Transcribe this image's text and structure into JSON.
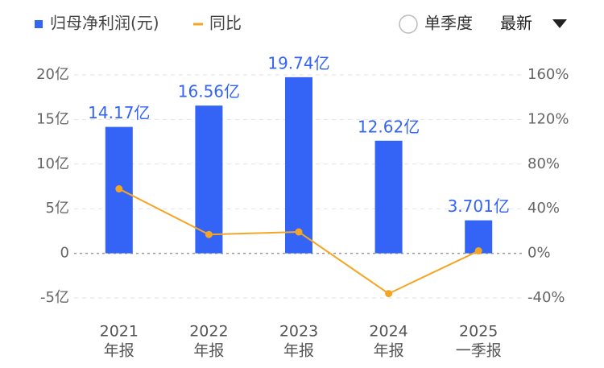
{
  "chart_data": {
    "type": "bar",
    "categories": [
      [
        "2021",
        "年报"
      ],
      [
        "2022",
        "年报"
      ],
      [
        "2023",
        "年报"
      ],
      [
        "2024",
        "年报"
      ],
      [
        "2025",
        "一季报"
      ]
    ],
    "series": [
      {
        "name": "归母净利润(元)",
        "color": "#3464f5",
        "type": "bar",
        "values": [
          14.17,
          16.56,
          19.74,
          12.62,
          3.701
        ],
        "value_labels": [
          "14.17亿",
          "16.56亿",
          "19.74亿",
          "12.62亿",
          "3.701亿"
        ]
      },
      {
        "name": "同比",
        "color": "#f5a524",
        "type": "line",
        "axis": "y2",
        "values": [
          57.8,
          16.9,
          19.2,
          -36.1,
          2.2
        ]
      }
    ],
    "ylim": [
      -5,
      20
    ],
    "yticks": [
      {
        "value": -5,
        "label": "-5亿"
      },
      0,
      {
        "value": 5,
        "label": "5亿"
      },
      {
        "value": 10,
        "label": "10亿"
      },
      {
        "value": 15,
        "label": "15亿"
      },
      {
        "value": 20,
        "label": "20亿"
      }
    ],
    "y2lim": [
      -40,
      160
    ],
    "y2ticks": [
      {
        "value": -40,
        "label": "-40%"
      },
      {
        "value": 0,
        "label": "0%"
      },
      {
        "value": 40,
        "label": "40%"
      },
      {
        "value": 80,
        "label": "80%"
      },
      {
        "value": 120,
        "label": "120%"
      },
      {
        "value": 160,
        "label": "160%"
      }
    ],
    "grid": true
  },
  "controls": {
    "period_option": "单季度",
    "sort_option": "最新"
  }
}
